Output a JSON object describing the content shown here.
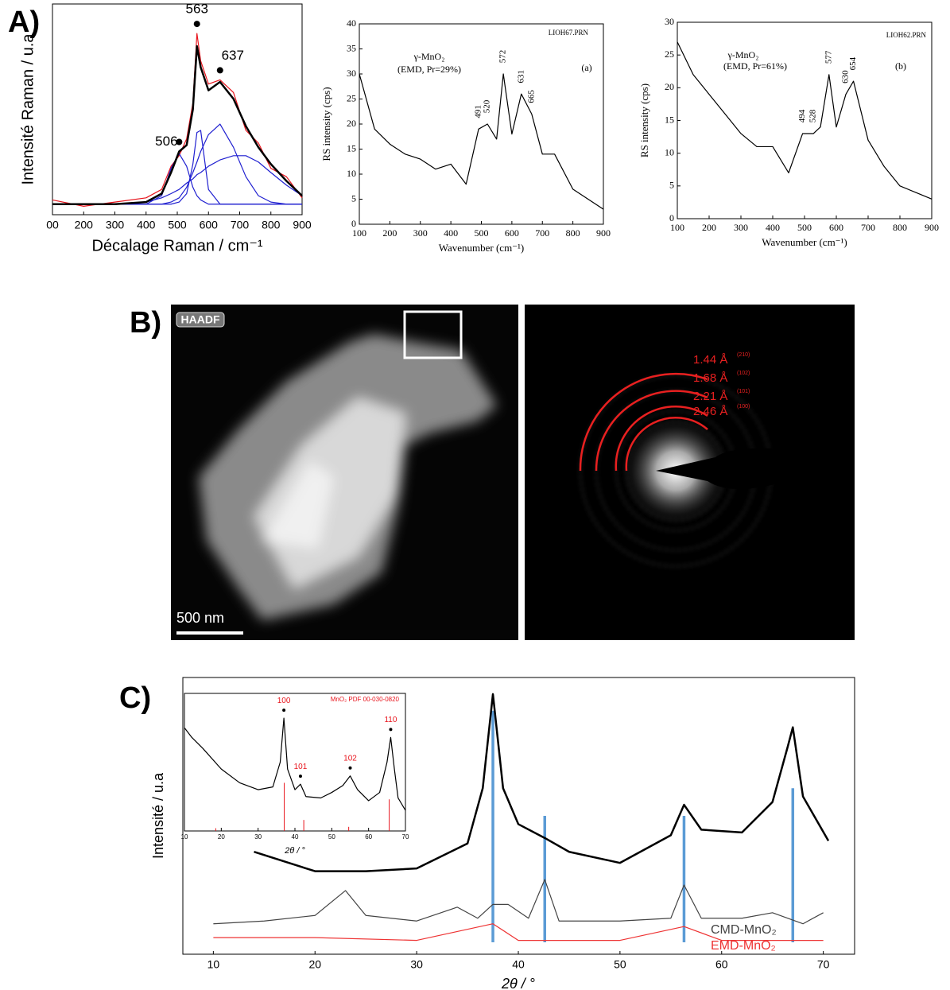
{
  "panel_labels": [
    "A)",
    "B)",
    "C)"
  ],
  "panel_b": {
    "haadf_label": "HAADF",
    "scale_label": "500 nm",
    "d_spacings": [
      {
        "label": "1.44 Å",
        "hkl": "(210)"
      },
      {
        "label": "1.68 Å",
        "hkl": "(102)"
      },
      {
        "label": "2.21 Å",
        "hkl": "(101)"
      },
      {
        "label": "2.46 Å",
        "hkl": "(100)"
      }
    ]
  },
  "chart_data": [
    {
      "type": "line",
      "xlabel": "Décalage Raman / cm⁻¹",
      "ylabel": "Intensité Raman / u.a",
      "xlim": [
        100,
        900
      ],
      "ylim": [
        0,
        10
      ],
      "xticks": [
        {
          "value": 100,
          "label": "00"
        },
        200,
        300,
        400,
        500,
        600,
        700,
        800,
        900
      ],
      "x": [
        100,
        200,
        300,
        400,
        450,
        480,
        506,
        530,
        550,
        563,
        575,
        600,
        637,
        680,
        720,
        760,
        800,
        850,
        900
      ],
      "series": [
        {
          "color": "#e8141c",
          "values": [
            0.7,
            0.4,
            0.6,
            0.8,
            1.2,
            2.3,
            2.8,
            3.6,
            5.3,
            8.6,
            7.3,
            6.2,
            6.4,
            5.8,
            4.0,
            3.4,
            2.2,
            1.8,
            0.8
          ]
        },
        {
          "color": "#1f1fd0",
          "values": [
            0.5,
            0.5,
            0.5,
            0.5,
            0.9,
            2.2,
            2.9,
            2.3,
            1.3,
            0.9,
            0.7,
            0.5,
            0.5,
            0.5,
            0.5,
            0.5,
            0.5,
            0.5,
            0.5
          ]
        },
        {
          "color": "#1f1fd0",
          "values": [
            0.5,
            0.5,
            0.5,
            0.5,
            0.5,
            0.5,
            0.6,
            1.0,
            2.4,
            3.9,
            4.0,
            1.2,
            0.5,
            0.5,
            0.5,
            0.5,
            0.5,
            0.5,
            0.5
          ]
        },
        {
          "color": "#1f1fd0",
          "values": [
            0.5,
            0.5,
            0.5,
            0.5,
            0.5,
            0.6,
            0.8,
            1.3,
            2.0,
            2.5,
            3.0,
            3.8,
            4.3,
            3.2,
            1.8,
            0.9,
            0.6,
            0.5,
            0.5
          ]
        },
        {
          "color": "#1f1fd0",
          "values": [
            0.5,
            0.5,
            0.5,
            0.6,
            0.8,
            1.0,
            1.2,
            1.5,
            1.7,
            1.9,
            2.0,
            2.3,
            2.6,
            2.8,
            2.8,
            2.5,
            2.0,
            1.4,
            0.9
          ]
        },
        {
          "color": "#000000",
          "values": [
            0.5,
            0.5,
            0.5,
            0.6,
            1.0,
            2.0,
            3.0,
            3.3,
            5.0,
            8.0,
            7.0,
            5.9,
            6.3,
            5.5,
            4.2,
            3.2,
            2.4,
            1.6,
            0.9
          ]
        }
      ],
      "peaks": [
        506,
        563,
        637
      ],
      "peak_marker": "dot"
    },
    {
      "type": "line",
      "xlabel": "Wavenumber (cm⁻¹)",
      "ylabel": "RS intensity (cps)",
      "xlim": [
        100,
        900
      ],
      "ylim": [
        0,
        40
      ],
      "xticks": [
        100,
        200,
        300,
        400,
        500,
        600,
        700,
        800,
        900
      ],
      "yticks": [
        0,
        5,
        10,
        15,
        20,
        25,
        30,
        35,
        40
      ],
      "x": [
        100,
        150,
        200,
        250,
        300,
        350,
        400,
        450,
        491,
        520,
        550,
        572,
        600,
        631,
        665,
        700,
        740,
        800,
        850,
        900
      ],
      "series": [
        {
          "color": "#000000",
          "values": [
            30,
            19,
            16,
            14,
            13,
            11,
            12,
            8,
            19,
            20,
            17,
            30,
            18,
            26,
            22,
            14,
            14,
            7,
            5,
            3
          ]
        }
      ],
      "peaks": [
        491,
        520,
        572,
        631,
        665
      ],
      "notes": [
        "LIOH67.PRN",
        "γ-MnO₂",
        "(EMD, Pr=29%)",
        "(a)"
      ]
    },
    {
      "type": "line",
      "xlabel": "Wavenumber (cm⁻¹)",
      "ylabel": "RS intensity (cps)",
      "xlim": [
        100,
        900
      ],
      "ylim": [
        0,
        30
      ],
      "xticks": [
        100,
        200,
        300,
        400,
        500,
        600,
        700,
        800,
        900
      ],
      "yticks": [
        0,
        5,
        10,
        15,
        20,
        25,
        30
      ],
      "x": [
        100,
        150,
        200,
        250,
        300,
        350,
        400,
        450,
        494,
        528,
        550,
        577,
        600,
        630,
        654,
        700,
        750,
        800,
        850,
        900
      ],
      "series": [
        {
          "color": "#000000",
          "values": [
            27,
            22,
            19,
            16,
            13,
            11,
            11,
            7,
            13,
            13,
            14,
            22,
            14,
            19,
            21,
            12,
            8,
            5,
            4,
            3
          ]
        }
      ],
      "peaks": [
        494,
        528,
        577,
        630,
        654
      ],
      "notes": [
        "LIOH62.PRN",
        "γ-MnO₂",
        "(EMD, Pr=61%)",
        "(b)"
      ]
    },
    {
      "type": "line",
      "xlabel": "2θ / °",
      "ylabel": "Intensité  / u.a",
      "xlim": [
        7,
        73
      ],
      "ylim": [
        0,
        10
      ],
      "xticks": [
        10,
        20,
        30,
        40,
        50,
        60,
        70
      ],
      "legend": "lower right",
      "series": [
        {
          "color": "#000000",
          "x": [
            14,
            20,
            25,
            30,
            35,
            36.5,
            37.5,
            38.5,
            40,
            42.6,
            45,
            50,
            55,
            56.3,
            58,
            62,
            65,
            66.5,
            67,
            68,
            70.5
          ],
          "values": [
            3.7,
            3.0,
            3.0,
            3.1,
            4.0,
            6.0,
            9.4,
            6.0,
            4.7,
            4.2,
            3.7,
            3.3,
            4.3,
            5.4,
            4.5,
            4.4,
            5.5,
            7.5,
            8.2,
            5.7,
            4.1
          ]
        },
        {
          "name": "CMD-MnO₂",
          "color": "#444444",
          "x": [
            10,
            15,
            20,
            23,
            25,
            30,
            34,
            36,
            37.5,
            39,
            41,
            42.6,
            44,
            50,
            55,
            56.3,
            58,
            62,
            65,
            68,
            70
          ],
          "values": [
            1.1,
            1.2,
            1.4,
            2.3,
            1.4,
            1.2,
            1.7,
            1.3,
            1.8,
            1.8,
            1.3,
            2.7,
            1.2,
            1.2,
            1.3,
            2.5,
            1.3,
            1.3,
            1.5,
            1.1,
            1.5
          ]
        },
        {
          "name": "EMD-MnO₂",
          "color": "#ee3333",
          "x": [
            10,
            20,
            30,
            37.5,
            40,
            50,
            56.3,
            60,
            70
          ],
          "values": [
            0.6,
            0.6,
            0.5,
            1.1,
            0.5,
            0.5,
            1.0,
            0.5,
            0.5
          ]
        }
      ],
      "reference_lines": {
        "color": "#5b9bd5",
        "x": [
          37.5,
          42.6,
          56.3,
          67
        ],
        "values": [
          8.8,
          5.0,
          5.0,
          6.0
        ]
      }
    },
    {
      "type": "line",
      "title": "MnO₂  PDF 00-030-0820",
      "xlabel": "2θ / °",
      "xlim": [
        10,
        70
      ],
      "ylim": [
        0,
        10
      ],
      "xticks": [
        10,
        20,
        30,
        40,
        50,
        60,
        70
      ],
      "x": [
        10,
        12,
        15,
        20,
        25,
        30,
        34,
        36,
        37,
        38,
        40,
        41.5,
        43,
        47,
        50,
        53,
        55,
        57,
        60,
        63,
        65,
        66,
        67,
        68,
        70
      ],
      "series": [
        {
          "color": "#000000",
          "values": [
            7.5,
            6.8,
            6.0,
            4.5,
            3.5,
            3.0,
            3.2,
            5.0,
            8.2,
            4.5,
            3.0,
            3.4,
            2.5,
            2.4,
            2.8,
            3.3,
            4.0,
            3.0,
            2.2,
            2.8,
            5.0,
            6.8,
            4.5,
            2.4,
            1.5
          ]
        }
      ],
      "peaks": [
        {
          "value": 37,
          "label": "100"
        },
        {
          "value": 41.5,
          "label": "101"
        },
        {
          "value": 55,
          "label": "102"
        },
        {
          "value": 66,
          "label": "110"
        }
      ],
      "peak_marker": "dot",
      "peak_label_color": "#e8141c",
      "reference_lines": {
        "color": "#e8141c",
        "x": [
          18.5,
          37.1,
          42.4,
          54.6,
          65.6
        ],
        "values": [
          0.2,
          3.5,
          0.8,
          0.3,
          2.3
        ]
      }
    }
  ]
}
